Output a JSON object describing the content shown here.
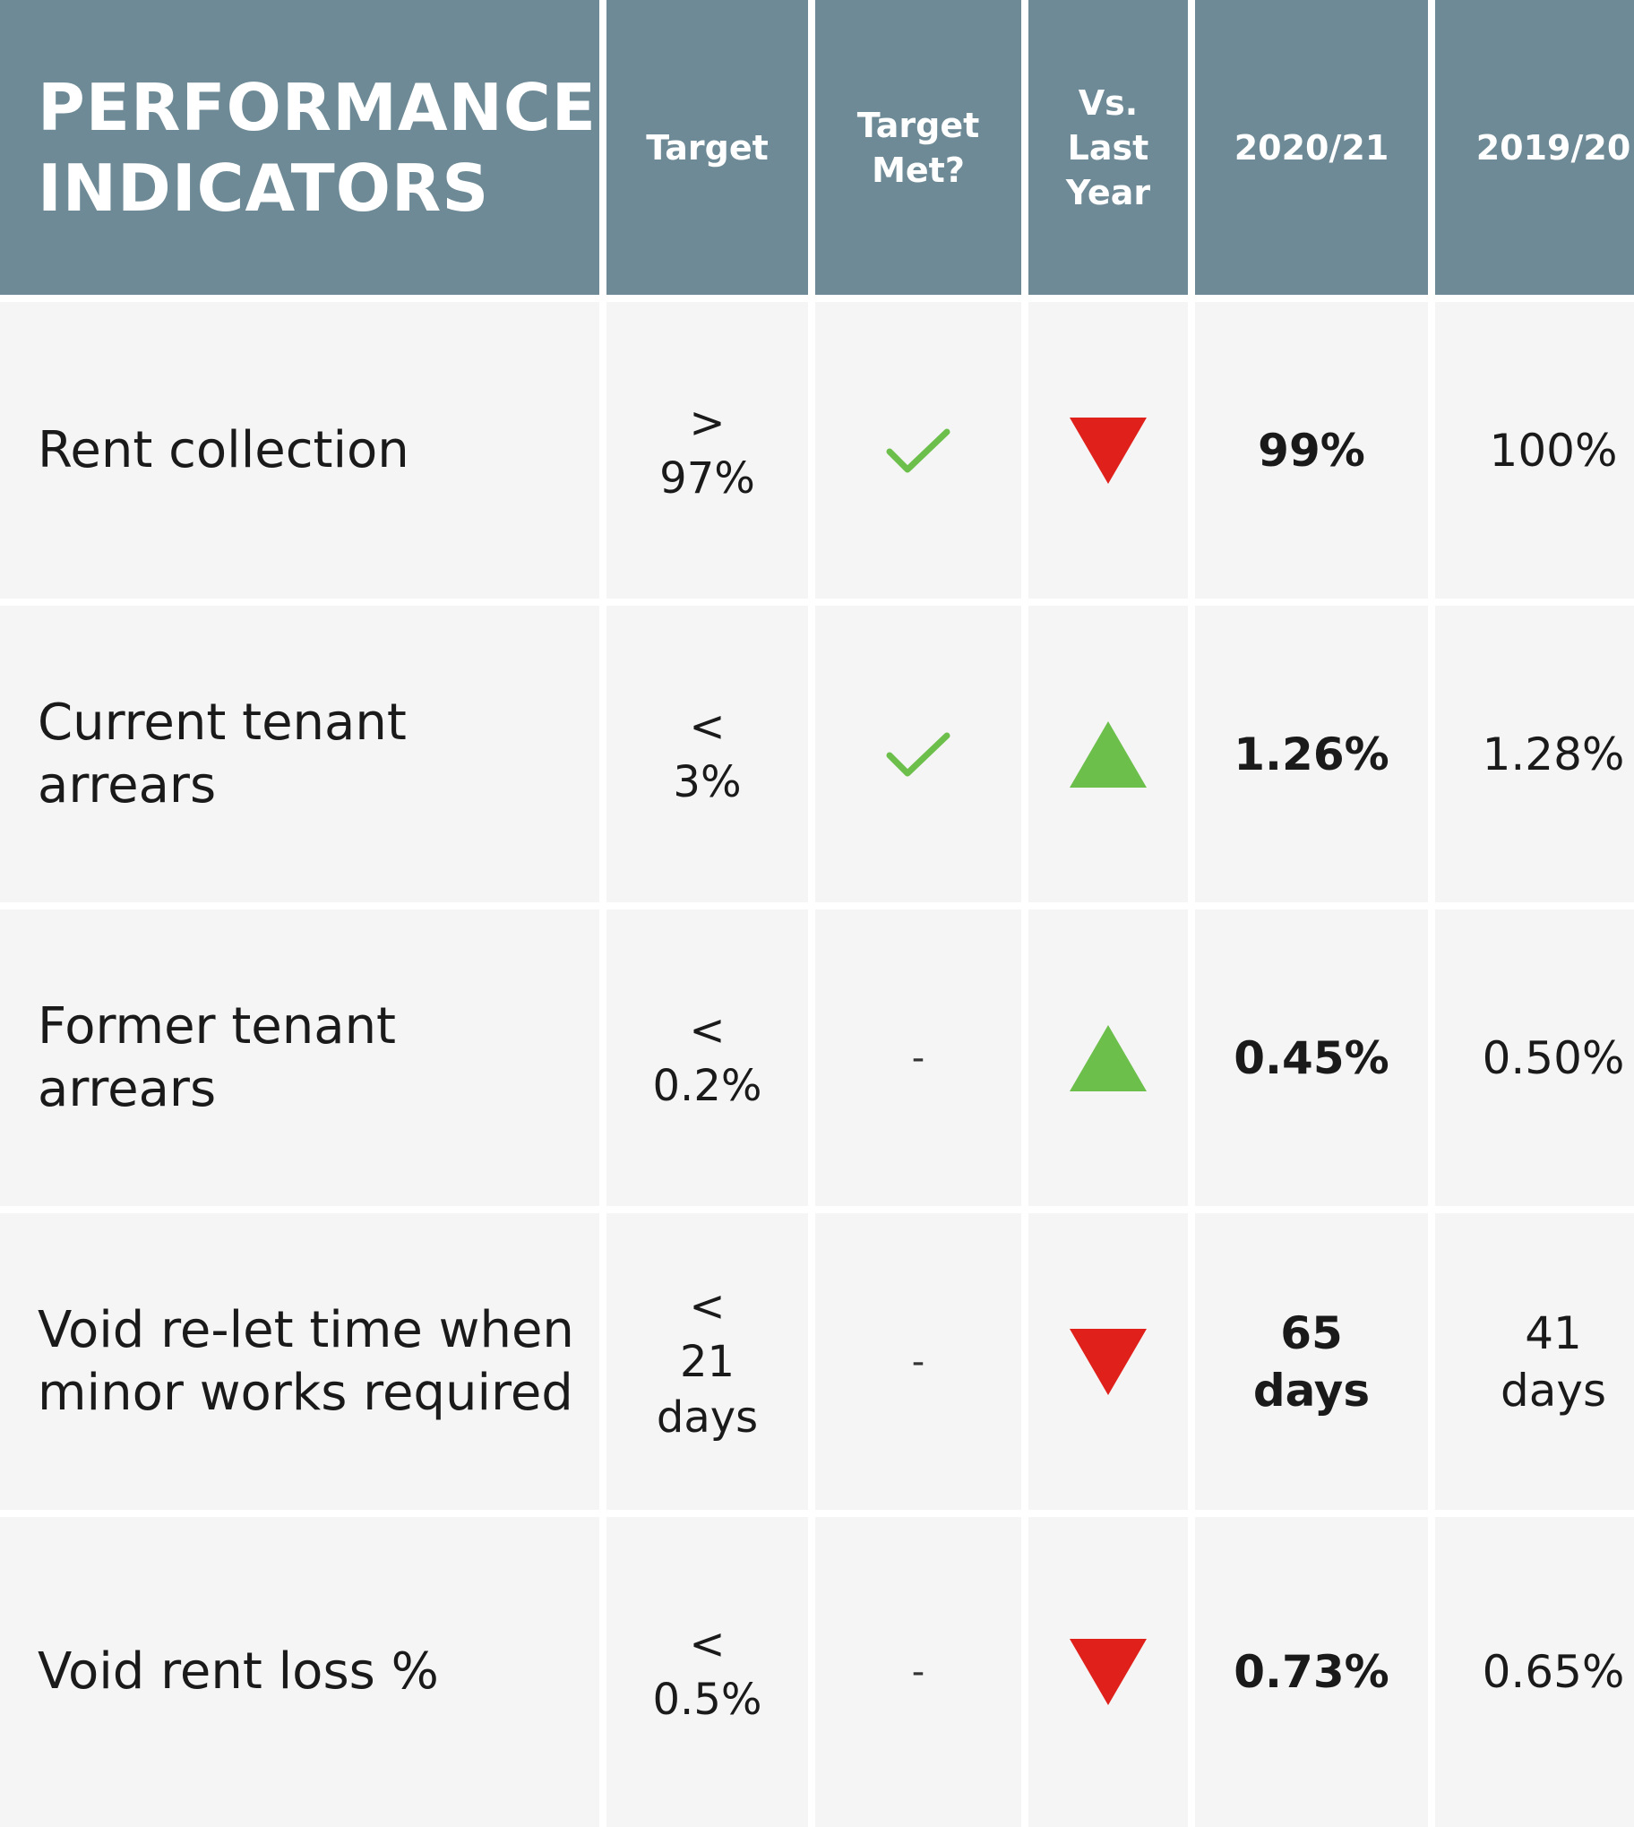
{
  "colors": {
    "header_bg": "#6d8a96",
    "cell_bg": "#f5f5f5",
    "check": "#6cbf4b",
    "up": "#6cbf4b",
    "down": "#e0201b"
  },
  "header": {
    "title_line1": "PERFORMANCE",
    "title_line2": "INDICATORS",
    "target": "Target",
    "target_met_line1": "Target",
    "target_met_line2": "Met?",
    "vs_line1": "Vs.",
    "vs_line2": "Last",
    "vs_line3": "Year",
    "current_year": "2020/21",
    "previous_year": "2019/20"
  },
  "rows": [
    {
      "label_lines": [
        "Rent collection"
      ],
      "target_lines": [
        ">",
        "97%"
      ],
      "target_met": "check-icon",
      "trend": "down",
      "current_lines": [
        "99%"
      ],
      "previous_lines": [
        "100%"
      ]
    },
    {
      "label_lines": [
        "Current tenant",
        "arrears"
      ],
      "target_lines": [
        "<",
        "3%"
      ],
      "target_met": "check-icon",
      "trend": "up",
      "current_lines": [
        "1.26%"
      ],
      "previous_lines": [
        "1.28%"
      ]
    },
    {
      "label_lines": [
        "Former tenant",
        "arrears"
      ],
      "target_lines": [
        "<",
        "0.2%"
      ],
      "target_met": "-",
      "trend": "up",
      "current_lines": [
        "0.45%"
      ],
      "previous_lines": [
        "0.50%"
      ]
    },
    {
      "label_lines": [
        "Void re-let time when",
        "minor works required"
      ],
      "target_lines": [
        "<",
        "21",
        "days"
      ],
      "target_met": "-",
      "trend": "down",
      "current_lines": [
        "65",
        "days"
      ],
      "previous_lines": [
        "41",
        "days"
      ]
    },
    {
      "label_lines": [
        "Void rent loss %"
      ],
      "target_lines": [
        "<",
        "0.5%"
      ],
      "target_met": "-",
      "trend": "down",
      "current_lines": [
        "0.73%"
      ],
      "previous_lines": [
        "0.65%"
      ]
    }
  ]
}
